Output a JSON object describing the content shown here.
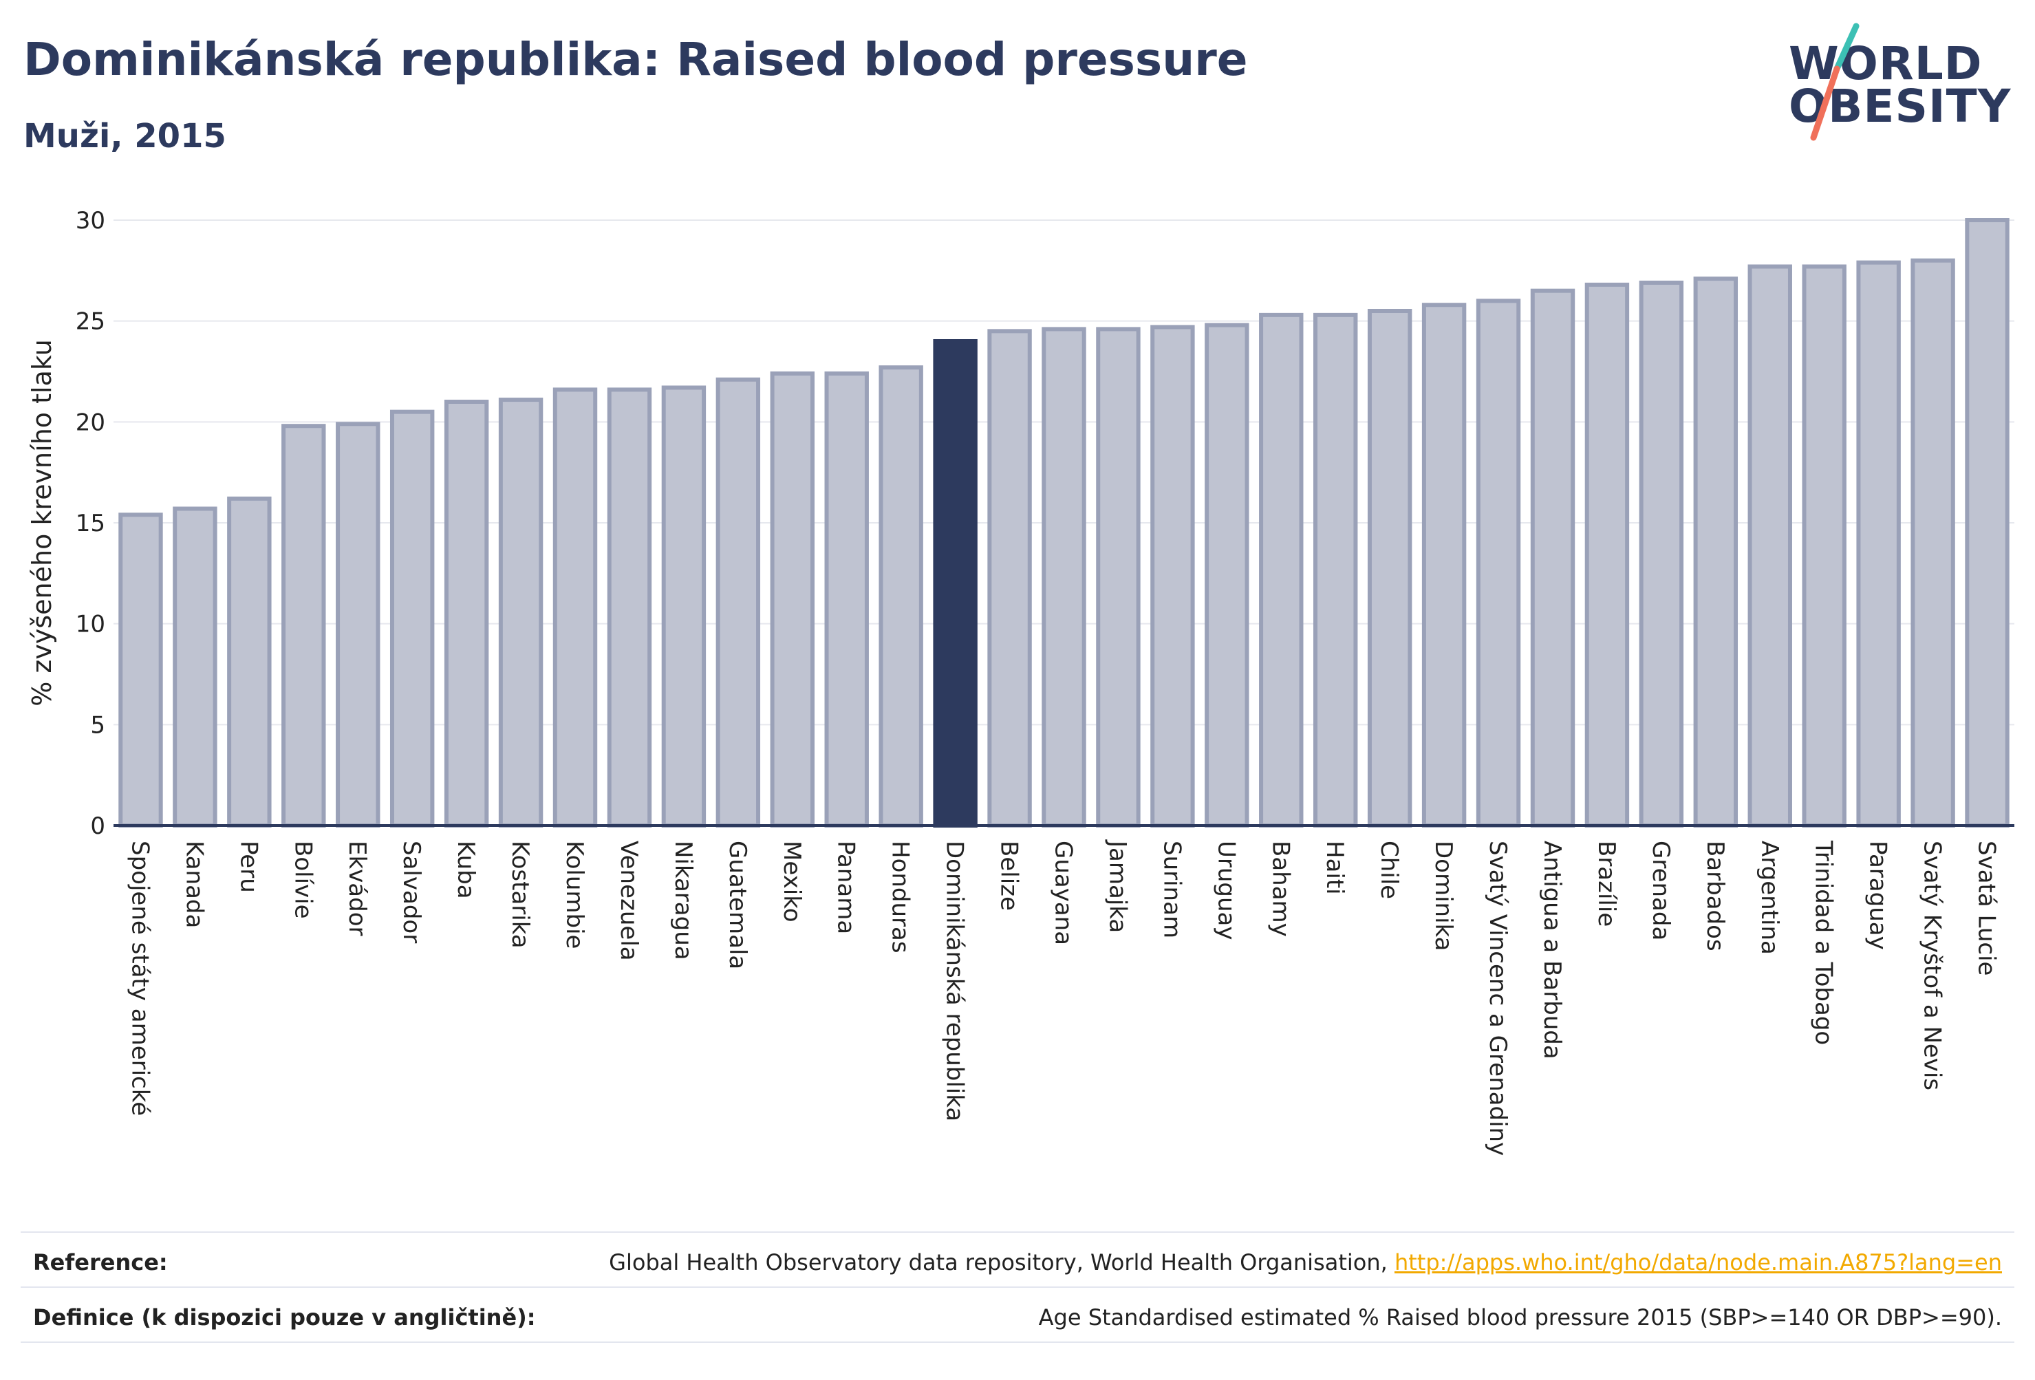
{
  "header": {
    "title": "Dominikánská republika: Raised blood pressure",
    "subtitle": "Muži, 2015"
  },
  "logo": {
    "line1": "WORLD",
    "line2": "OBESITY",
    "colors": {
      "text": "#2d3a5e",
      "slash_top": "#3cc0b4",
      "slash_bottom": "#f0705a"
    }
  },
  "chart_data": {
    "type": "bar",
    "ylabel": "% zvýšeného krevního tlaku",
    "ylim": [
      0,
      30
    ],
    "yticks": [
      0,
      5,
      10,
      15,
      20,
      25,
      30
    ],
    "grid": true,
    "highlight": "Dominikánská republika",
    "colors": {
      "bar": "#bfc3d1",
      "bar_edge": "#9aa1b8",
      "highlight": "#2d3a5e",
      "grid": "#e6e8ee",
      "axis": "#2d3a5e"
    },
    "categories": [
      "Spojené státy americké",
      "Kanada",
      "Peru",
      "Bolívie",
      "Ekvádor",
      "Salvador",
      "Kuba",
      "Kostarika",
      "Kolumbie",
      "Venezuela",
      "Nikaragua",
      "Guatemala",
      "Mexiko",
      "Panama",
      "Honduras",
      "Dominikánská republika",
      "Belize",
      "Guayana",
      "Jamajka",
      "Surinam",
      "Uruguay",
      "Bahamy",
      "Haiti",
      "Chile",
      "Dominika",
      "Svatý Vincenc a Grenadiny",
      "Antigua a Barbuda",
      "Brazílie",
      "Grenada",
      "Barbados",
      "Argentina",
      "Trinidad a Tobago",
      "Paraguay",
      "Svatý Kryštof a Nevis",
      "Svatá Lucie"
    ],
    "values": [
      15.4,
      15.7,
      16.2,
      19.8,
      19.9,
      20.5,
      21.0,
      21.1,
      21.6,
      21.6,
      21.7,
      22.1,
      22.4,
      22.4,
      22.7,
      24.0,
      24.5,
      24.6,
      24.6,
      24.7,
      24.8,
      25.3,
      25.3,
      25.5,
      25.8,
      26.0,
      26.5,
      26.8,
      26.9,
      27.1,
      27.7,
      27.7,
      27.9,
      28.0,
      30.0
    ]
  },
  "footer": {
    "reference_label": "Reference:",
    "reference_text": "Global Health Observatory data repository, World Health Organisation, ",
    "reference_link": "http://apps.who.int/gho/data/node.main.A875?lang=en",
    "definition_label": "Definice (k dispozici pouze v angličtině):",
    "definition_text": "Age Standardised estimated % Raised blood pressure 2015 (SBP>=140 OR DBP>=90)."
  }
}
